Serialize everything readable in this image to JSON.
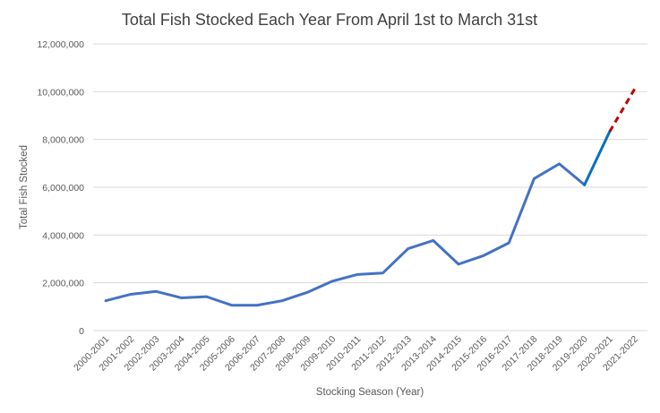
{
  "chart_data": {
    "type": "line",
    "title": "Total Fish Stocked Each Year From April 1st to March 31st",
    "xlabel": "Stocking Season (Year)",
    "ylabel": "Total Fish Stocked",
    "ylim": [
      0,
      12000000
    ],
    "yticks": [
      0,
      2000000,
      4000000,
      6000000,
      8000000,
      10000000,
      12000000
    ],
    "ytick_labels": [
      "0",
      "2,000,000",
      "4,000,000",
      "6,000,000",
      "8,000,000",
      "10,000,000",
      "12,000,000"
    ],
    "grid": true,
    "legend": "none",
    "categories": [
      "2000-2001",
      "2001-2002",
      "2002-2003",
      "2003-2004",
      "2004-2005",
      "2005-2006",
      "2006-2007",
      "2007-2008",
      "2008-2009",
      "2009-2010",
      "2010-2011",
      "2011-2012",
      "2012-2013",
      "2013-2014",
      "2014-2015",
      "2015-2016",
      "2016-2017",
      "2017-2018",
      "2018-2019",
      "2019-2020",
      "2020-2021",
      "2021-2022"
    ],
    "series": [
      {
        "style": "solid",
        "color": "#4472c4",
        "values": [
          1250000,
          1520000,
          1640000,
          1370000,
          1420000,
          1060000,
          1060000,
          1250000,
          1600000,
          2070000,
          2350000,
          2410000,
          3430000,
          3770000,
          2780000,
          3140000,
          3670000,
          6360000,
          6980000,
          6100000,
          null,
          null
        ]
      },
      {
        "style": "solid",
        "color": "#0070c0",
        "values": [
          null,
          null,
          null,
          null,
          null,
          null,
          null,
          null,
          null,
          null,
          null,
          null,
          null,
          null,
          null,
          null,
          null,
          null,
          null,
          6100000,
          8330000,
          null
        ]
      },
      {
        "style": "dashed",
        "color": "#c00000",
        "values": [
          null,
          null,
          null,
          null,
          null,
          null,
          null,
          null,
          null,
          null,
          null,
          null,
          null,
          null,
          null,
          null,
          null,
          null,
          null,
          null,
          8330000,
          10130000
        ]
      }
    ]
  }
}
